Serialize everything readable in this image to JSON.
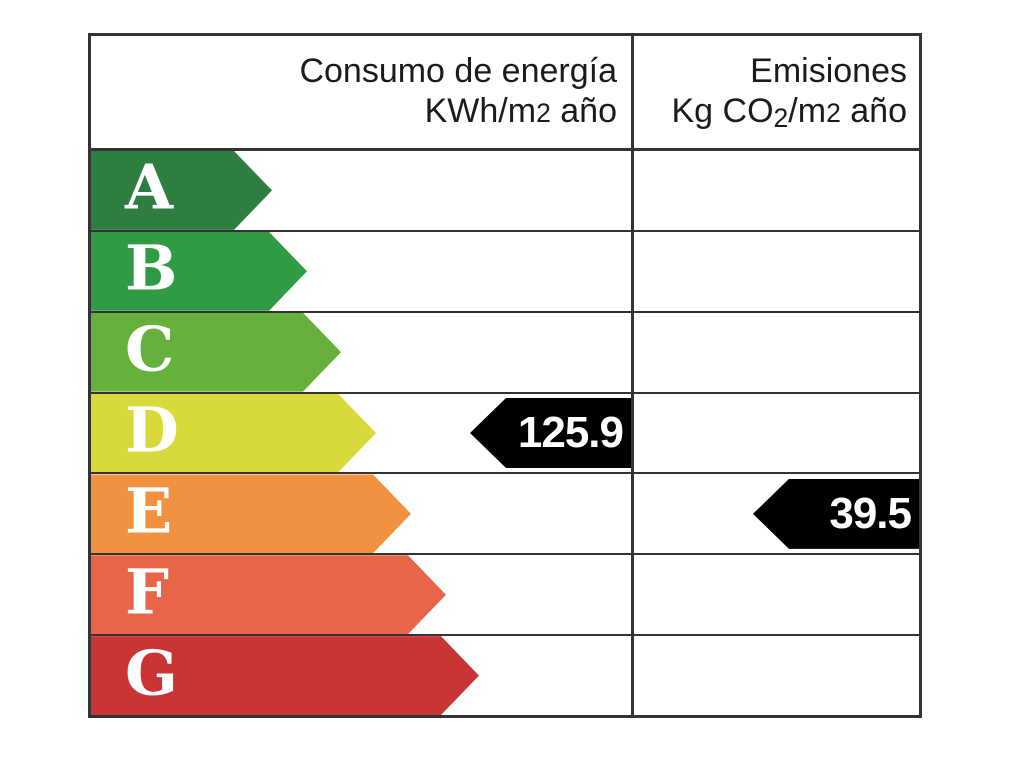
{
  "page": {
    "background": "#ffffff",
    "border_color": "#333333"
  },
  "header": {
    "energy_line1": "Consumo de energía",
    "energy_line2": [
      {
        "t": "KWh/m",
        "style": "normal"
      },
      {
        "t": "2",
        "style": "small"
      },
      {
        "t": " año",
        "style": "normal"
      }
    ],
    "emissions_line1": "Emisiones",
    "emissions_line2": [
      {
        "t": "Kg CO",
        "style": "normal"
      },
      {
        "t": "2",
        "style": "sub"
      },
      {
        "t": "/m",
        "style": "normal"
      },
      {
        "t": "2",
        "style": "small"
      },
      {
        "t": " año",
        "style": "normal"
      }
    ]
  },
  "rows": [
    {
      "letter": "A",
      "color": "#2e7d41",
      "arrow_width": 181
    },
    {
      "letter": "B",
      "color": "#2f9b44",
      "arrow_width": 216
    },
    {
      "letter": "C",
      "color": "#66b13c",
      "arrow_width": 250
    },
    {
      "letter": "D",
      "color": "#d8da3b",
      "arrow_width": 285,
      "energy_value": "125.9",
      "energy_arrow_width": 161
    },
    {
      "letter": "E",
      "color": "#f0923f",
      "arrow_width": 320,
      "emissions_value": "39.5",
      "emissions_arrow_width": 166
    },
    {
      "letter": "F",
      "color": "#e96549",
      "arrow_width": 355
    },
    {
      "letter": "G",
      "color": "#c93535",
      "arrow_width": 388
    }
  ],
  "value_arrow": {
    "background": "#000000",
    "text_color": "#ffffff"
  },
  "letter_color": "#ffffff",
  "chart_data": {
    "type": "bar",
    "categories": [
      "A",
      "B",
      "C",
      "D",
      "E",
      "F",
      "G"
    ],
    "bar_colors": [
      "#2e7d41",
      "#2f9b44",
      "#66b13c",
      "#d8da3b",
      "#f0923f",
      "#e96549",
      "#c93535"
    ],
    "columns": [
      "Consumo de energía KWh/m2 año",
      "Emisiones Kg CO2/m2 año"
    ],
    "series": [
      {
        "name": "Consumo de energía KWh/m2 año",
        "rating": "D",
        "value": 125.9
      },
      {
        "name": "Emisiones Kg CO2/m2 año",
        "rating": "E",
        "value": 39.5
      }
    ],
    "legend_position": "none",
    "grid": false
  }
}
